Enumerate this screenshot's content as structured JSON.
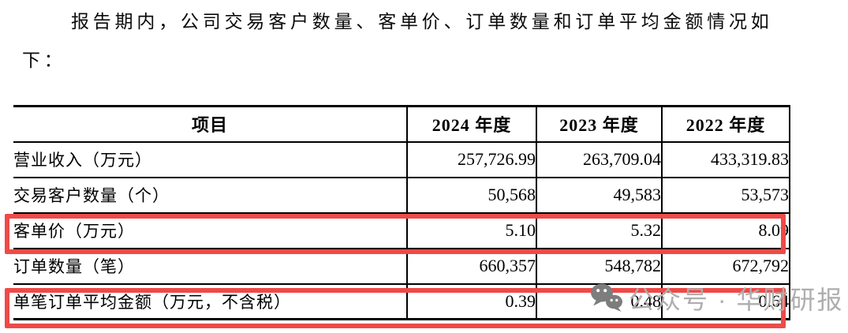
{
  "paragraph": {
    "line1": "报告期内，公司交易客户数量、客单价、订单数量和订单平均金额情况如",
    "line2": "下："
  },
  "table": {
    "headers": [
      "项目",
      "2024 年度",
      "2023 年度",
      "2022 年度"
    ],
    "rows": [
      {
        "label": "营业收入（万元）",
        "values": [
          "257,726.99",
          "263,709.04",
          "433,319.83"
        ],
        "highlighted": false
      },
      {
        "label": "交易客户数量（个）",
        "values": [
          "50,568",
          "49,583",
          "53,573"
        ],
        "highlighted": false
      },
      {
        "label": "客单价（万元）",
        "values": [
          "5.10",
          "5.32",
          "8.09"
        ],
        "highlighted": true
      },
      {
        "label": "订单数量（笔）",
        "values": [
          "660,357",
          "548,782",
          "672,792"
        ],
        "highlighted": false
      },
      {
        "label": "单笔订单平均金额（万元，不含税）",
        "values": [
          "0.39",
          "0.48",
          "0.64"
        ],
        "highlighted": true
      }
    ]
  },
  "watermark": {
    "icon": "wechat-icon",
    "text": "公众号 · 华财研报"
  },
  "colors": {
    "highlight_border": "#ee4a48",
    "watermark_text": "#aeaeae",
    "watermark_icon": "#7d7d7d",
    "table_border": "#000000"
  }
}
